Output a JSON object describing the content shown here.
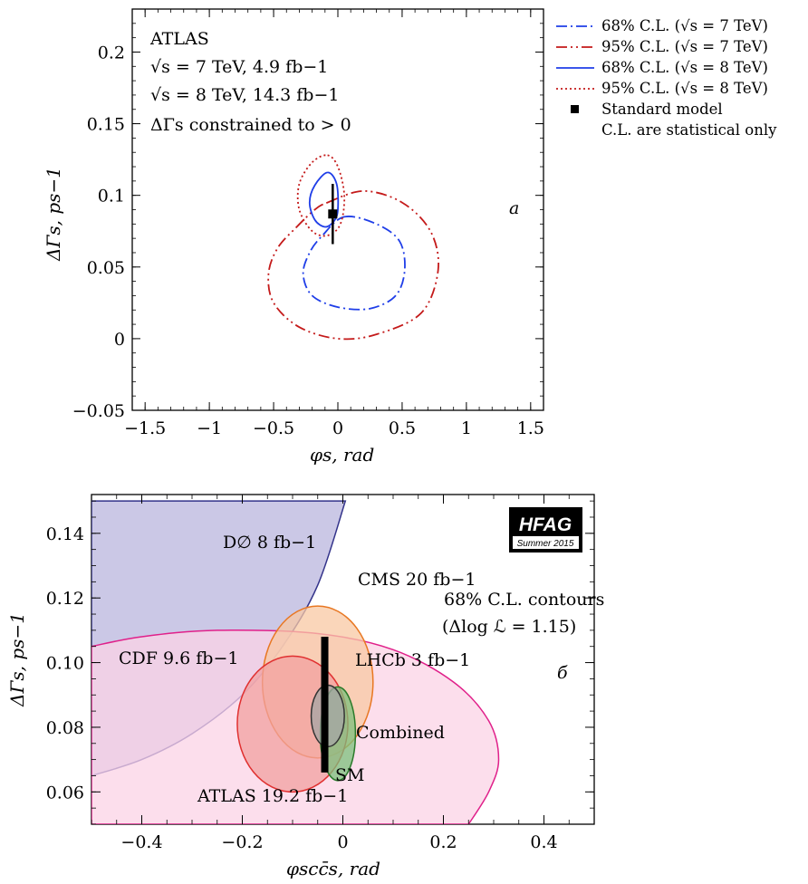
{
  "chart_data": [
    {
      "type": "contour",
      "panel_label": "a",
      "xlabel": "φs, rad",
      "ylabel": "ΔΓs, ps−1",
      "xlim": [
        -1.6,
        1.6
      ],
      "ylim": [
        -0.05,
        0.23
      ],
      "xticks": [
        "−1.5",
        "−1",
        "−0.5",
        "0",
        "0.5",
        "1",
        "1.5"
      ],
      "yticks": [
        "−0.05",
        "0",
        "0.05",
        "0.1",
        "0.15",
        "0.2"
      ],
      "xtick_values": [
        -1.5,
        -1,
        -0.5,
        0,
        0.5,
        1,
        1.5
      ],
      "ytick_values": [
        -0.05,
        0,
        0.05,
        0.1,
        0.15,
        0.2
      ],
      "annotations": [
        "ATLAS",
        "√s = 7 TeV, 4.9 fb−1",
        "√s = 8 TeV, 14.3 fb−1",
        "ΔΓs constrained to > 0"
      ],
      "legend_position": "outside right",
      "legend": [
        {
          "label": "68% C.L. (√s = 7 TeV)",
          "color": "#1f3ee8",
          "style": "dash-dot"
        },
        {
          "label": "95% C.L. (√s = 7 TeV)",
          "color": "#c41a1a",
          "style": "dash-dot-dot"
        },
        {
          "label": "68% C.L. (√s = 8 TeV)",
          "color": "#1f3ee8",
          "style": "solid"
        },
        {
          "label": "95% C.L. (√s = 8 TeV)",
          "color": "#c41a1a",
          "style": "dotted"
        },
        {
          "label": "Standard model",
          "marker": "square"
        },
        {
          "label": "C.L. are statistical only"
        }
      ],
      "series": [
        {
          "label_ref": 0,
          "points": [
            [
              0.05,
              0.085
            ],
            [
              0.3,
              0.08
            ],
            [
              0.48,
              0.068
            ],
            [
              0.52,
              0.048
            ],
            [
              0.45,
              0.03
            ],
            [
              0.25,
              0.021
            ],
            [
              0.0,
              0.022
            ],
            [
              -0.2,
              0.03
            ],
            [
              -0.27,
              0.045
            ],
            [
              -0.22,
              0.06
            ],
            [
              -0.12,
              0.072
            ]
          ]
        },
        {
          "label_ref": 1,
          "points": [
            [
              -0.08,
              0.095
            ],
            [
              0.2,
              0.103
            ],
            [
              0.5,
              0.095
            ],
            [
              0.72,
              0.075
            ],
            [
              0.78,
              0.048
            ],
            [
              0.65,
              0.018
            ],
            [
              0.3,
              0.003
            ],
            [
              0.0,
              0.0
            ],
            [
              -0.3,
              0.008
            ],
            [
              -0.5,
              0.025
            ],
            [
              -0.54,
              0.045
            ],
            [
              -0.47,
              0.063
            ],
            [
              -0.32,
              0.078
            ],
            [
              -0.18,
              0.09
            ]
          ]
        },
        {
          "label_ref": 2,
          "points": [
            [
              -0.08,
              0.116
            ],
            [
              -0.01,
              0.108
            ],
            [
              0.0,
              0.09
            ],
            [
              -0.03,
              0.082
            ],
            [
              -0.1,
              0.078
            ],
            [
              -0.18,
              0.083
            ],
            [
              -0.22,
              0.095
            ],
            [
              -0.18,
              0.107
            ]
          ]
        },
        {
          "label_ref": 3,
          "points": [
            [
              -0.08,
              0.128
            ],
            [
              0.0,
              0.12
            ],
            [
              0.05,
              0.1
            ],
            [
              0.02,
              0.08
            ],
            [
              -0.08,
              0.072
            ],
            [
              -0.2,
              0.075
            ],
            [
              -0.3,
              0.09
            ],
            [
              -0.3,
              0.108
            ],
            [
              -0.2,
              0.123
            ]
          ]
        }
      ],
      "standard_model": {
        "phi_s": -0.04,
        "delta_gamma_s": 0.087,
        "delta_gamma_s_range": [
          0.066,
          0.108
        ]
      }
    },
    {
      "type": "contour",
      "panel_label": "б",
      "xlabel": "φscc̄s, rad",
      "ylabel": "ΔΓs, ps−1",
      "xlim": [
        -0.5,
        0.5
      ],
      "ylim": [
        0.05,
        0.152
      ],
      "xticks": [
        "−0.4",
        "−0.2",
        "0",
        "0.2",
        "0.4"
      ],
      "yticks": [
        "0.06",
        "0.08",
        "0.10",
        "0.12",
        "0.14"
      ],
      "xtick_values": [
        -0.4,
        -0.2,
        0,
        0.2,
        0.4
      ],
      "ytick_values": [
        0.06,
        0.08,
        0.1,
        0.12,
        0.14
      ],
      "annotations": [
        "68% C.L. contours",
        "(Δlog ℒ = 1.15)"
      ],
      "badge": {
        "title": "HFAG",
        "subtitle": "Summer 2015"
      },
      "regions": [
        {
          "label": "D∅ 8 fb−1",
          "fill": "#b9b5dd",
          "stroke": "#33338a",
          "points": [
            [
              -0.5,
              0.15
            ],
            [
              0.005,
              0.15
            ],
            [
              -0.05,
              0.124
            ],
            [
              -0.12,
              0.105
            ],
            [
              -0.2,
              0.09
            ],
            [
              -0.3,
              0.078
            ],
            [
              -0.4,
              0.07
            ],
            [
              -0.5,
              0.065
            ]
          ]
        },
        {
          "label": "ATLAS 19.2 fb−1",
          "fill": "#fbd3e6",
          "stroke": "#e0208a",
          "points": [
            [
              -0.5,
              0.105
            ],
            [
              -0.4,
              0.108
            ],
            [
              -0.25,
              0.11
            ],
            [
              -0.05,
              0.109
            ],
            [
              0.1,
              0.104
            ],
            [
              0.22,
              0.094
            ],
            [
              0.29,
              0.082
            ],
            [
              0.31,
              0.07
            ],
            [
              0.29,
              0.06
            ],
            [
              0.25,
              0.05
            ],
            [
              -0.5,
              0.05
            ]
          ]
        },
        {
          "label": "CMS 20 fb−1",
          "fill": "#f8c8a3",
          "stroke": "#e87722",
          "ellipse": {
            "cx": -0.05,
            "cy": 0.094,
            "rx": 0.11,
            "ry": 0.0235
          }
        },
        {
          "label": "CDF 9.6 fb−1",
          "fill": "#f2a0a0",
          "stroke": "#e03030",
          "ellipse": {
            "cx": -0.1,
            "cy": 0.081,
            "rx": 0.11,
            "ry": 0.021
          }
        },
        {
          "label": "LHCb 3 fb−1",
          "fill": "#7cc07c",
          "stroke": "#2a7a2a",
          "ellipse": {
            "cx": -0.01,
            "cy": 0.078,
            "rx": 0.035,
            "ry": 0.0145
          }
        },
        {
          "label": "Combined",
          "fill": "#a5a5a5",
          "stroke": "#333333",
          "ellipse": {
            "cx": -0.03,
            "cy": 0.0835,
            "rx": 0.033,
            "ry": 0.0095
          }
        }
      ],
      "standard_model": {
        "label": "SM",
        "phi_s": -0.036,
        "delta_gamma_s_range": [
          0.066,
          0.108
        ]
      }
    }
  ]
}
